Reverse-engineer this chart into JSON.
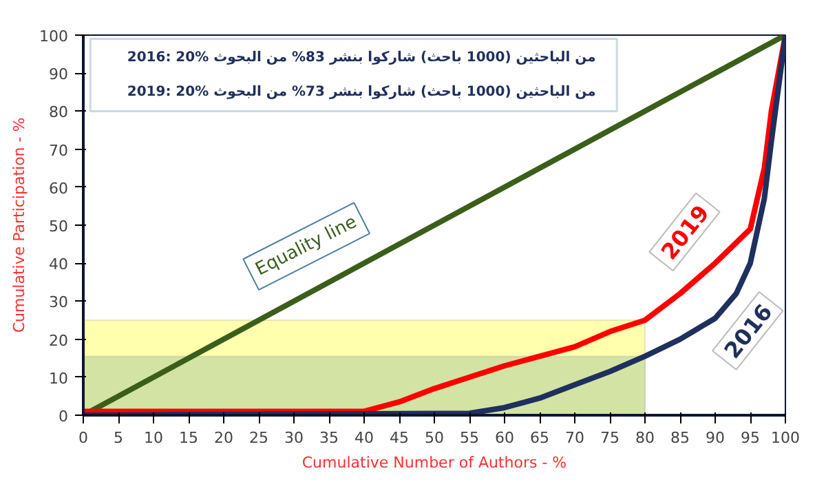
{
  "chart_data": {
    "type": "line",
    "xlabel": "Cumulative Number of Authors - %",
    "ylabel": "Cumulative Participation - %",
    "xlim": [
      0,
      100
    ],
    "ylim": [
      0,
      100
    ],
    "xticks": [
      0,
      5,
      10,
      15,
      20,
      25,
      30,
      35,
      40,
      45,
      50,
      55,
      60,
      65,
      70,
      75,
      80,
      85,
      90,
      95,
      100
    ],
    "yticks": [
      0,
      10,
      20,
      30,
      40,
      50,
      60,
      70,
      80,
      90,
      100
    ],
    "grid": false,
    "legend": false,
    "marker": "none",
    "line_style": "solid",
    "series": [
      {
        "name": "Equality line",
        "color": "#3b5e1a",
        "x": [
          0,
          100
        ],
        "values": [
          0,
          100
        ]
      },
      {
        "name": "2019",
        "color": "#ff0000",
        "x": [
          0,
          40,
          45,
          50,
          55,
          60,
          65,
          70,
          75,
          80,
          85,
          90,
          95,
          97,
          98,
          100
        ],
        "values": [
          1,
          1,
          3.5,
          7,
          10,
          13,
          15.5,
          18,
          22,
          25,
          32,
          40,
          49,
          65,
          80,
          100
        ]
      },
      {
        "name": "2016",
        "color": "#1f2f5e",
        "x": [
          0,
          55,
          60,
          65,
          70,
          75,
          80,
          85,
          90,
          93,
          95,
          97,
          98,
          100
        ],
        "values": [
          0,
          0.5,
          2,
          4.5,
          8,
          11.5,
          15.5,
          20,
          25.5,
          32,
          40,
          57,
          72,
          100
        ]
      }
    ],
    "bands": [
      {
        "axis": "y",
        "from": 0,
        "to": 25,
        "color": "#ffff99"
      },
      {
        "axis": "y",
        "from": 0,
        "to": 15.5,
        "color": "#c8dca0"
      }
    ],
    "annotations": [
      "2016: 20% من الباحثين (1000 باحث) شاركوا بنشر 83% من البحوث",
      "2019: 20% من الباحثين (1000 باحث) شاركوا بنشر 73% من البحوث"
    ]
  }
}
